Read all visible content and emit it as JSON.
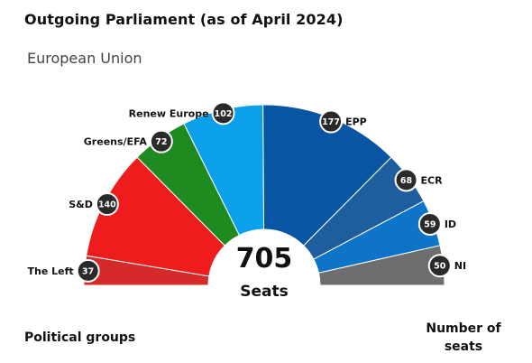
{
  "title": "Outgoing Parliament (as of April 2024)",
  "subtitle": "European Union",
  "footer": {
    "left": "Political groups",
    "right": "Number of seats"
  },
  "chart_data": {
    "type": "pie",
    "subtype": "half-donut (parliament)",
    "total": {
      "value": "705",
      "label": "Seats"
    },
    "order": "left-to-right",
    "series": [
      {
        "name": "The Left",
        "value": 37,
        "color": "#d42a2a",
        "label_side": "left"
      },
      {
        "name": "S&D",
        "value": 140,
        "color": "#ee1c1c",
        "label_side": "left"
      },
      {
        "name": "Greens/EFA",
        "value": 72,
        "color": "#1f8a1f",
        "label_side": "left"
      },
      {
        "name": "Renew Europe",
        "value": 102,
        "color": "#0aa0ea",
        "label_side": "left"
      },
      {
        "name": "EPP",
        "value": 177,
        "color": "#0755a3",
        "label_side": "right"
      },
      {
        "name": "ECR",
        "value": 68,
        "color": "#1e5d9e",
        "label_side": "right"
      },
      {
        "name": "ID",
        "value": 59,
        "color": "#0d74c8",
        "label_side": "right"
      },
      {
        "name": "NI",
        "value": 50,
        "color": "#6e6e6e",
        "label_side": "right"
      }
    ],
    "legend": "none",
    "grid": false
  }
}
